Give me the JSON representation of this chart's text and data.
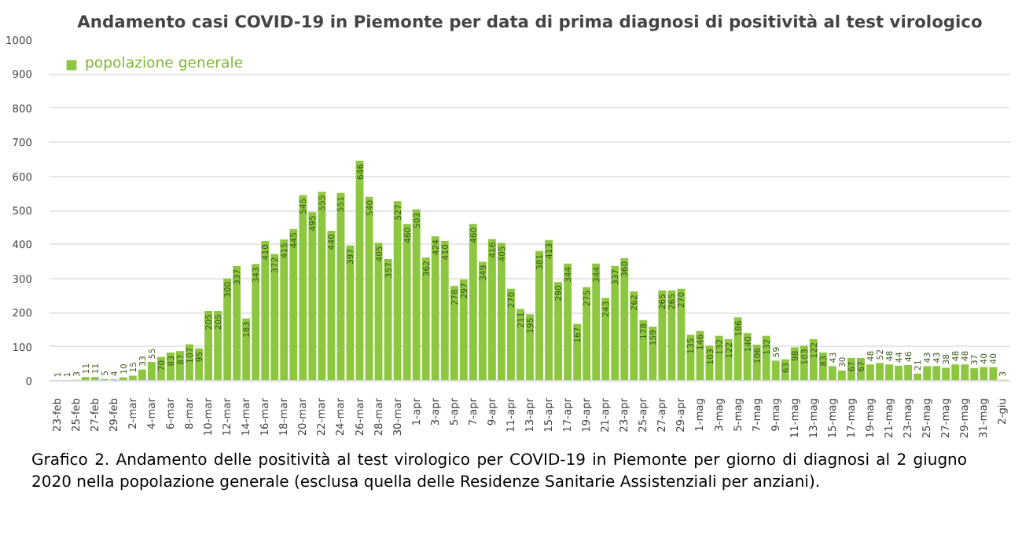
{
  "chart_data": {
    "type": "bar",
    "title": "Andamento casi COVID-19 in Piemonte per data di prima diagnosi di positività al test virologico",
    "categories": [
      "23-feb",
      null,
      "25-feb",
      null,
      "27-feb",
      null,
      "29-feb",
      null,
      "2-mar",
      null,
      "4-mar",
      null,
      "6-mar",
      null,
      "8-mar",
      null,
      "10-mar",
      null,
      "12-mar",
      null,
      "14-mar",
      null,
      "16-mar",
      null,
      "18-mar",
      null,
      "20-mar",
      null,
      "22-mar",
      null,
      "24-mar",
      null,
      "26-mar",
      null,
      "28-mar",
      null,
      "30-mar",
      null,
      "1-apr",
      null,
      "3-apr",
      null,
      "5-apr",
      null,
      "7-apr",
      null,
      "9-apr",
      null,
      "11-apr",
      null,
      "13-apr",
      null,
      "15-apr",
      null,
      "17-apr",
      null,
      "19-apr",
      null,
      "21-apr",
      null,
      "23-apr",
      null,
      "25-apr",
      null,
      "27-apr",
      null,
      "29-apr",
      null,
      "1-mag",
      null,
      "3-mag",
      null,
      "5-mag",
      null,
      "7-mag",
      null,
      "9-mag",
      null,
      "11-mag",
      null,
      "13-mag",
      null,
      "15-mag",
      null,
      "17-mag",
      null,
      "19-mag",
      null,
      "21-mag",
      null,
      "23-mag",
      null,
      "25-mag",
      null,
      "27-mag",
      null,
      "29-mag",
      null,
      "31-mag",
      null,
      "2-giu"
    ],
    "series": [
      {
        "name": "popolazione generale",
        "color": "#8dc63f",
        "values": [
          1,
          1,
          3,
          11,
          11,
          5,
          4,
          10,
          15,
          33,
          55,
          70,
          83,
          87,
          107,
          95,
          205,
          205,
          300,
          337,
          183,
          343,
          410,
          372,
          415,
          445,
          545,
          495,
          555,
          440,
          551,
          397,
          646,
          540,
          405,
          357,
          527,
          460,
          503,
          362,
          424,
          410,
          278,
          297,
          460,
          349,
          416,
          405,
          270,
          211,
          195,
          381,
          413,
          290,
          344,
          167,
          275,
          344,
          243,
          337,
          360,
          262,
          178,
          159,
          265,
          265,
          270,
          135,
          146,
          103,
          132,
          122,
          186,
          140,
          106,
          132,
          59,
          63,
          98,
          103,
          122,
          83,
          43,
          30,
          67,
          67,
          48,
          52,
          48,
          44,
          46,
          21,
          43,
          43,
          38,
          48,
          48,
          37,
          40,
          40,
          3
        ]
      }
    ],
    "ylim": [
      0,
      1000
    ],
    "yticks": [
      0,
      100,
      200,
      300,
      400,
      500,
      600,
      700,
      800,
      900,
      1000
    ],
    "grid": "y",
    "legend": "top left",
    "data_labels": true,
    "annotations": [
      "Grafico 2. Andamento delle positività al test virologico per COVID-19 in Piemonte per giorno di diagnosi al 2 giugno 2020 nella popolazione generale (esclusa quella delle Residenze Sanitarie Assistenziali per anziani)."
    ]
  }
}
